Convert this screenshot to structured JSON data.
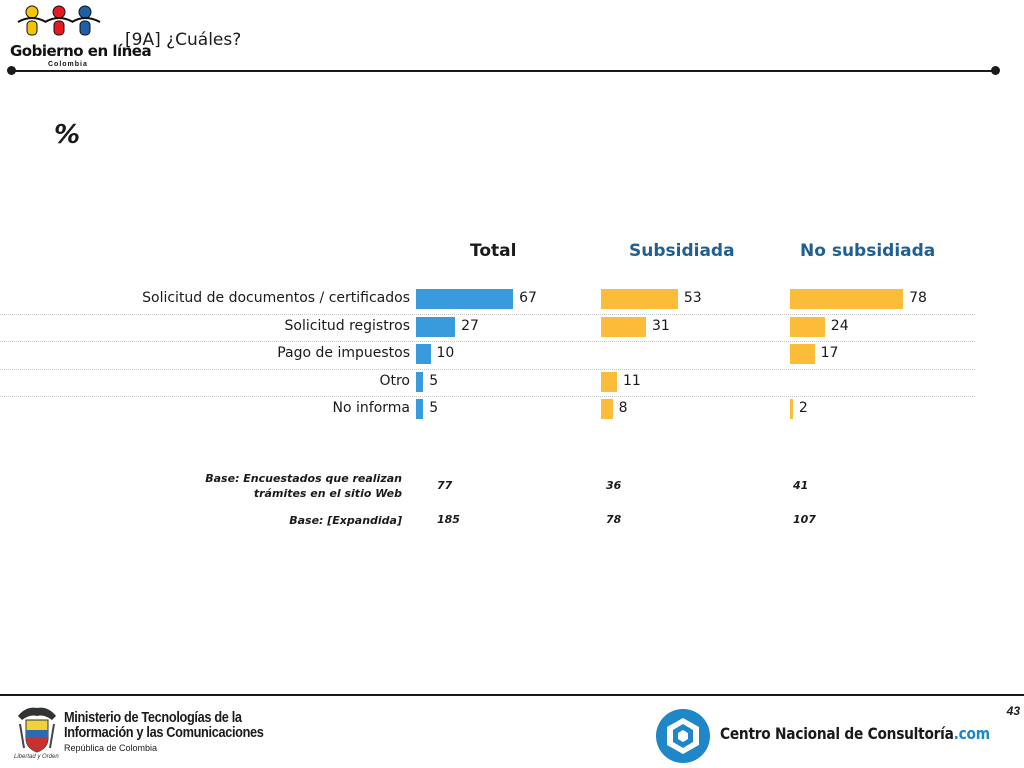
{
  "header": {
    "logo_text": "Gobierno en línea",
    "logo_sub": "Colombia",
    "title": "[9A] ¿Cuáles?"
  },
  "unit_label": "%",
  "chart_data": {
    "type": "bar",
    "orientation": "horizontal",
    "categories": [
      "Solicitud de documentos / certificados",
      "Solicitud registros",
      "Pago de impuestos",
      "Otro",
      "No informa"
    ],
    "series": [
      {
        "name": "Total",
        "color": "#3a9bdc",
        "values": [
          67,
          27,
          10,
          5,
          5
        ]
      },
      {
        "name": "Subsidiada",
        "color": "#fbbc3a",
        "values": [
          53,
          31,
          null,
          11,
          8
        ]
      },
      {
        "name": "No subsidiada",
        "color": "#fbbc3a",
        "values": [
          78,
          24,
          17,
          null,
          2
        ]
      }
    ],
    "xlim": [
      0,
      100
    ],
    "grid": false,
    "legend": "none"
  },
  "bases": [
    {
      "label_lines": [
        "Base: Encuestados que realizan",
        "trámites en el sitio Web"
      ],
      "values": [
        "77",
        "36",
        "41"
      ]
    },
    {
      "label_lines": [
        "Base: [Expandida]"
      ],
      "values": [
        "185",
        "78",
        "107"
      ]
    }
  ],
  "footer": {
    "page_number": "43",
    "ministry_line1": "Ministerio de Tecnologías de la",
    "ministry_line2": "Información y las Comunicaciones",
    "ministry_sub": "República de Colombia",
    "shield_motto": "Libertad y Orden",
    "cnc_name": "Centro Nacional de Consultoría",
    "cnc_suffix": ".com"
  },
  "colors": {
    "total_bar": "#3a9bdc",
    "segment_bar": "#fbbc3a",
    "segment_header": "#1f5f94",
    "cnc_accent": "#1f86c8"
  }
}
